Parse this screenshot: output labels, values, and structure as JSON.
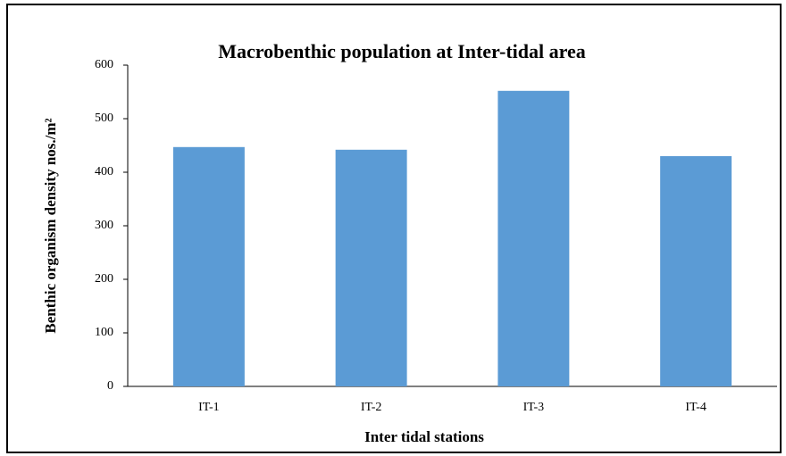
{
  "chart_data": {
    "type": "bar",
    "title": "Macrobenthic population at Inter-tidal area",
    "x_label": "Inter tidal stations",
    "y_label": "Benthic organism density nos./m²",
    "categories": [
      "IT-1",
      "IT-2",
      "IT-3",
      "IT-4"
    ],
    "values": [
      447,
      442,
      552,
      430
    ],
    "color": "#5b9bd5",
    "ylim": [
      0,
      600
    ],
    "yticks": [
      0,
      100,
      200,
      300,
      400,
      500,
      600
    ],
    "grid": false
  }
}
